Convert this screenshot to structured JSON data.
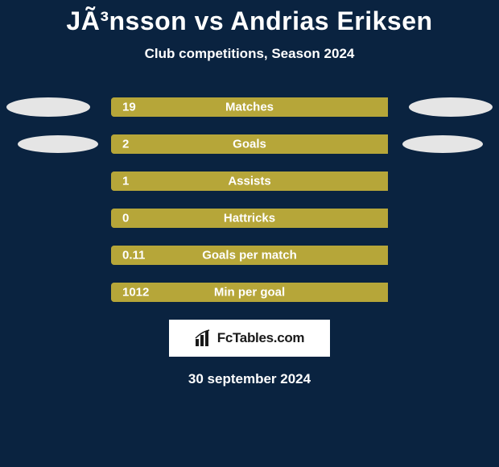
{
  "title": "JÃ³nsson vs Andrias Eriksen",
  "subtitle": "Club competitions, Season 2024",
  "date": "30 september 2024",
  "logo_text": "FcTables.com",
  "colors": {
    "background": "#0a2340",
    "bar_bg": "#8a7a1e",
    "bar_fill": "#b6a639",
    "ellipse": "#e5e5e5",
    "text": "#ffffff",
    "logo_bg": "#ffffff",
    "logo_text": "#1a1a1a"
  },
  "stats": [
    {
      "label": "Matches",
      "value": "19",
      "fill_pct": 100,
      "left_ellipse": true,
      "right_ellipse": true,
      "ellipse_variant": "row1"
    },
    {
      "label": "Goals",
      "value": "2",
      "fill_pct": 100,
      "left_ellipse": true,
      "right_ellipse": true,
      "ellipse_variant": "row2"
    },
    {
      "label": "Assists",
      "value": "1",
      "fill_pct": 100,
      "left_ellipse": false,
      "right_ellipse": false
    },
    {
      "label": "Hattricks",
      "value": "0",
      "fill_pct": 100,
      "left_ellipse": false,
      "right_ellipse": false
    },
    {
      "label": "Goals per match",
      "value": "0.11",
      "fill_pct": 100,
      "left_ellipse": false,
      "right_ellipse": false
    },
    {
      "label": "Min per goal",
      "value": "1012",
      "fill_pct": 100,
      "left_ellipse": false,
      "right_ellipse": false
    }
  ]
}
